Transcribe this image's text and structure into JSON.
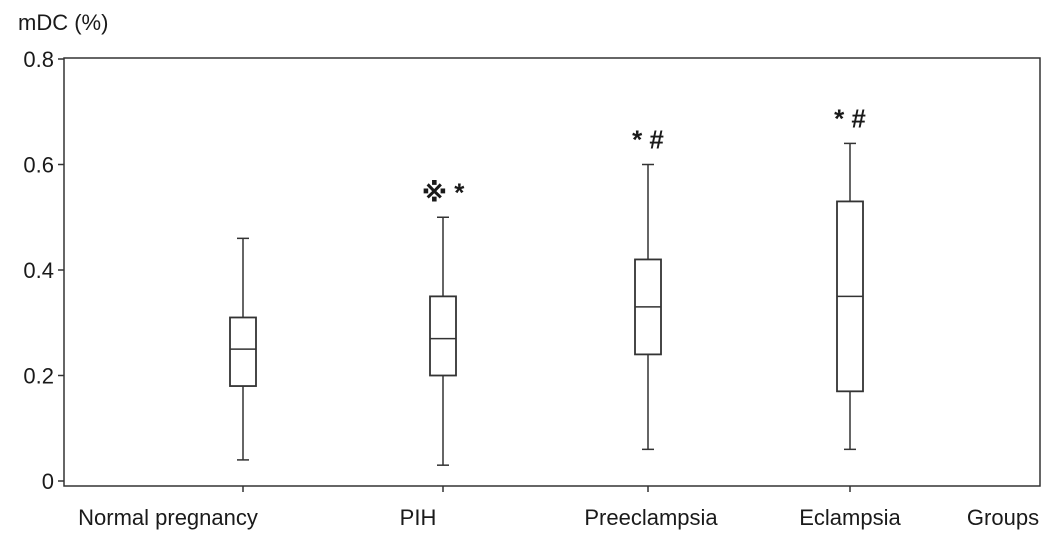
{
  "chart_data": {
    "type": "boxplot",
    "ylabel": "mDC (%)",
    "xlabel": "Groups",
    "ylim": [
      0,
      0.8
    ],
    "yticks": [
      "0",
      "0.2",
      "0.4",
      "0.6",
      "0.8"
    ],
    "yticks_values": [
      0,
      0.2,
      0.4,
      0.6,
      0.8
    ],
    "grid": false,
    "categories": [
      "Normal pregnancy",
      "PIH",
      "Preeclampsia",
      "Eclampsia"
    ],
    "boxes": [
      {
        "min": 0.04,
        "q1": 0.18,
        "median": 0.25,
        "q3": 0.31,
        "max": 0.46,
        "annotation": ""
      },
      {
        "min": 0.03,
        "q1": 0.2,
        "median": 0.27,
        "q3": 0.35,
        "max": 0.5,
        "annotation": "※ *"
      },
      {
        "min": 0.06,
        "q1": 0.24,
        "median": 0.33,
        "q3": 0.42,
        "max": 0.6,
        "annotation": "* #"
      },
      {
        "min": 0.06,
        "q1": 0.17,
        "median": 0.35,
        "q3": 0.53,
        "max": 0.64,
        "annotation": "* #"
      }
    ]
  }
}
